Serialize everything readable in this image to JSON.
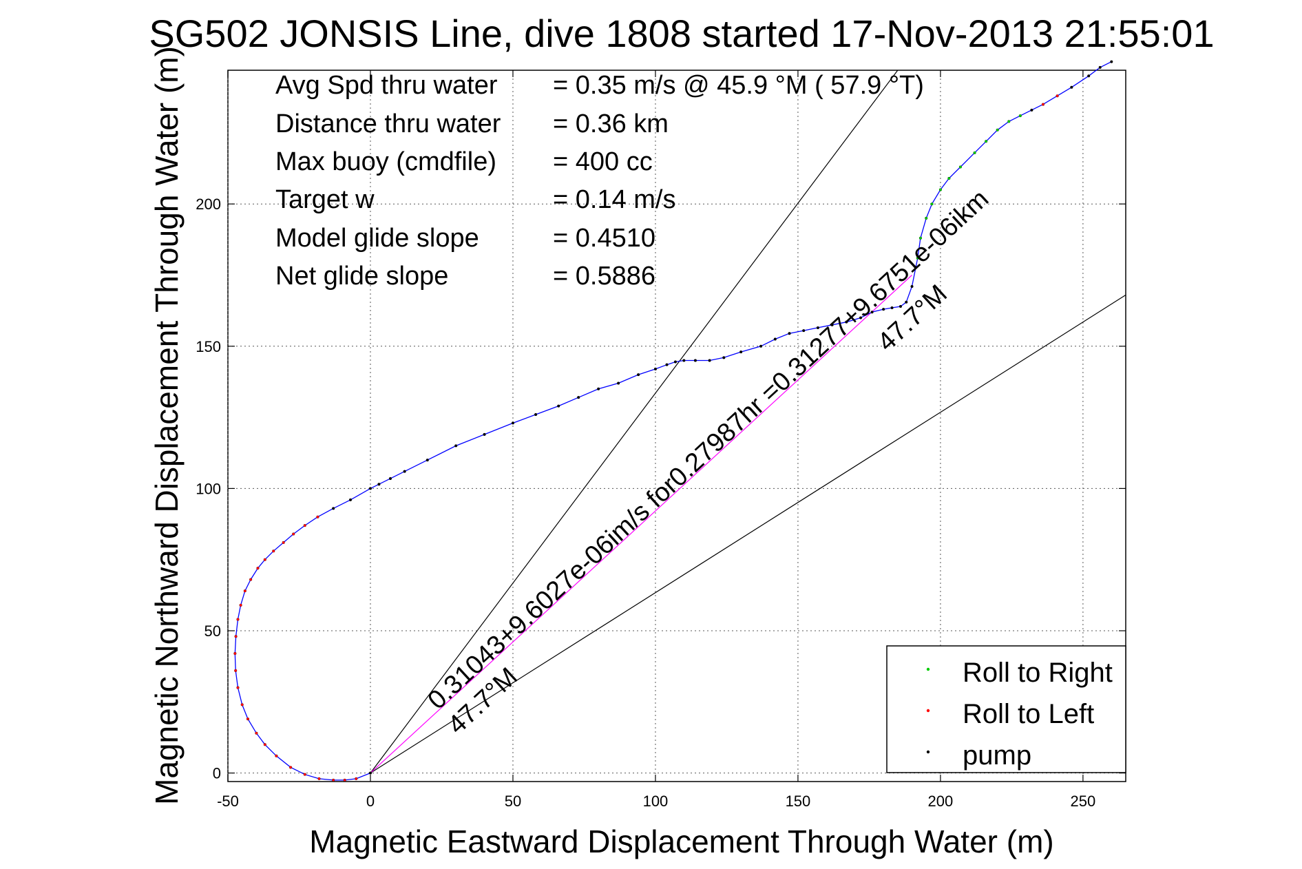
{
  "chart_data": {
    "type": "line",
    "title": "SG502 JONSIS Line, dive 1808 started 17-Nov-2013 21:55:01",
    "xlabel": "Magnetic Eastward Displacement Through Water (m)",
    "ylabel": "Magnetic Northward Displacement Through Water (m)",
    "xlim": [
      -50,
      265
    ],
    "ylim": [
      -3,
      247
    ],
    "xticks": [
      -50,
      0,
      50,
      100,
      150,
      200,
      250
    ],
    "yticks": [
      0,
      50,
      100,
      150,
      200
    ],
    "xtick_labels": [
      "-50",
      "0",
      "50",
      "100",
      "150",
      "200",
      "250"
    ],
    "ytick_labels": [
      "0",
      "50",
      "100",
      "150",
      "200"
    ],
    "grid": true,
    "legend_position": "bottom-right",
    "info_lines": [
      {
        "label": "Avg Spd thru water",
        "value": "=  0.35 m/s @  45.9 °M ( 57.9 °T)"
      },
      {
        "label": "Distance thru water",
        "value": "=  0.36 km"
      },
      {
        "label": "Max buoy (cmdfile)",
        "value": "= 400 cc"
      },
      {
        "label": "Target w",
        "value": "= 0.14 m/s"
      },
      {
        "label": "Model glide slope",
        "value": "= 0.4510"
      },
      {
        "label": "Net glide slope",
        "value": "= 0.5886"
      }
    ],
    "annotations": {
      "current_text": "0.31043+9.6027e-06im/s for0.27987hr =0.31277+9.6751e-06ikm",
      "heading_low": "47.7°M",
      "heading_high": "47.7°M"
    },
    "reference_lines": [
      {
        "name": "",
        "from": [
          0,
          0
        ],
        "to": [
          185,
          247
        ],
        "color": "#000000"
      },
      {
        "name": "",
        "from": [
          0,
          0
        ],
        "to": [
          265,
          168
        ],
        "color": "#000000"
      },
      {
        "name": "",
        "from": [
          0,
          0
        ],
        "to": [
          190,
          175
        ],
        "color": "#ff00ff"
      }
    ],
    "series": [
      {
        "name": "",
        "color": "#0000ff",
        "marker_color": "#000000",
        "x": [
          0,
          -5,
          -9,
          -13,
          -18,
          -23,
          -28,
          -33,
          -37,
          -40,
          -43,
          -45,
          -46.5,
          -47.3,
          -47.5,
          -47.2,
          -46.5,
          -45.5,
          -44,
          -42,
          -39.5,
          -37,
          -34,
          -30.5,
          -27,
          -23,
          -18.5,
          -13,
          -7,
          0,
          3,
          7,
          12,
          20,
          30,
          40,
          50,
          58,
          66,
          73,
          80,
          87,
          94,
          100,
          104,
          107,
          110,
          114,
          119,
          124,
          130,
          137,
          142,
          147,
          152,
          157,
          162,
          167,
          172,
          176,
          180,
          183,
          186,
          188,
          190,
          192,
          193,
          195,
          197,
          200,
          203,
          207,
          212,
          216,
          220,
          224,
          228,
          232,
          236,
          241,
          246,
          252,
          256,
          260
        ],
        "y": [
          0,
          -2,
          -2.5,
          -2.5,
          -2,
          -0.5,
          2,
          6,
          10,
          14,
          19,
          24,
          30,
          36,
          42,
          48,
          54,
          59,
          64,
          68,
          72,
          75,
          78,
          81,
          84,
          87,
          90,
          93,
          96,
          100,
          101.5,
          103.5,
          106,
          110,
          115,
          119,
          123,
          126,
          129,
          132,
          135,
          137,
          140,
          142,
          143.5,
          144.5,
          145,
          145,
          145,
          146,
          148,
          150,
          152.5,
          154.5,
          155.5,
          156.5,
          157.5,
          158.5,
          160,
          162,
          163,
          163.5,
          164,
          165.5,
          171,
          181,
          188,
          195,
          200,
          205,
          209,
          213,
          218,
          222,
          226,
          229,
          231,
          233,
          235,
          238,
          241,
          245,
          248,
          250
        ]
      },
      {
        "name": "Roll to Right",
        "color": "#00cc00",
        "x": [
          192,
          193,
          195,
          197,
          200,
          203,
          207,
          212,
          216,
          220,
          224,
          228
        ],
        "y": [
          181,
          188,
          195,
          200,
          205,
          209,
          213,
          218,
          222,
          226,
          229,
          231
        ]
      },
      {
        "name": "Roll to Left",
        "color": "#ff0000",
        "x": [
          -5,
          -9,
          -13,
          -18,
          -23,
          -28,
          -33,
          -37,
          -40,
          -43,
          -45,
          -46.5,
          -47.3,
          -47.5,
          -47.2,
          -46.5,
          -45.5,
          -44,
          -42,
          -39.5,
          -37,
          -34,
          -30.5,
          -27,
          -23,
          -18.5,
          236,
          241
        ],
        "y": [
          -2,
          -2.5,
          -2.5,
          -2,
          -0.5,
          2,
          6,
          10,
          14,
          19,
          24,
          30,
          36,
          42,
          48,
          54,
          59,
          64,
          68,
          72,
          75,
          78,
          81,
          84,
          87,
          90,
          235,
          238
        ]
      },
      {
        "name": "pump",
        "color": "#000000",
        "x": [
          0,
          3,
          7,
          12,
          40,
          58,
          73,
          87,
          94,
          100,
          104,
          107,
          110,
          114,
          119,
          124,
          130,
          137,
          142,
          147
        ],
        "y": [
          0,
          101.5,
          103.5,
          106,
          119,
          126,
          132,
          137,
          140,
          142,
          143.5,
          144.5,
          145,
          145,
          145,
          146,
          148,
          150,
          152.5,
          154.5
        ]
      }
    ],
    "legend": [
      "Roll to Right",
      "Roll to Left",
      "pump"
    ]
  }
}
